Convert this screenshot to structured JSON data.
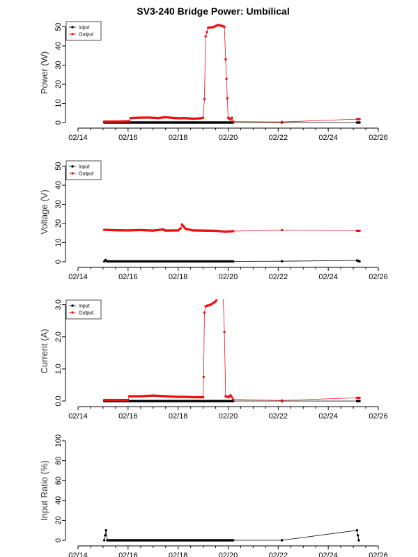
{
  "title": "SV3-240 Bridge Power: Umbilical",
  "colors": {
    "input": "#000000",
    "output": "#ee1111"
  },
  "chart_data": [
    {
      "type": "line",
      "id": "power",
      "ylabel": "Power (W)",
      "ylim": [
        0,
        52
      ],
      "yticks": [
        "0",
        "10",
        "20",
        "30",
        "40",
        "50"
      ],
      "xticks": [
        "02/14",
        "02/16",
        "02/18",
        "02/20",
        "02/22",
        "02/24",
        "02/26"
      ],
      "legend": {
        "position": "top-left",
        "entries": [
          "Input",
          "Output"
        ]
      },
      "series": [
        {
          "name": "Input",
          "color": "#000000",
          "points": [
            [
              15.05,
              0
            ],
            [
              15.5,
              0
            ],
            [
              16,
              0
            ],
            [
              17,
              0
            ],
            [
              17.8,
              0
            ],
            [
              18.2,
              0
            ],
            [
              18.7,
              0
            ],
            [
              19.5,
              0
            ],
            [
              20.2,
              0
            ],
            [
              22.15,
              0
            ],
            [
              25.15,
              0
            ],
            [
              25.25,
              0
            ]
          ]
        },
        {
          "name": "Output",
          "color": "#ee1111",
          "points": [
            [
              15.05,
              0.5
            ],
            [
              15.5,
              0.5
            ],
            [
              16.05,
              0.7
            ],
            [
              16.1,
              2.3
            ],
            [
              16.4,
              2.5
            ],
            [
              16.8,
              2.6
            ],
            [
              17.2,
              2.3
            ],
            [
              17.5,
              2.8
            ],
            [
              17.7,
              2.5
            ],
            [
              18.0,
              2.2
            ],
            [
              18.3,
              2.3
            ],
            [
              18.6,
              2.0
            ],
            [
              18.9,
              2.2
            ],
            [
              19.0,
              2.5
            ],
            [
              19.05,
              12.2
            ],
            [
              19.1,
              45
            ],
            [
              19.2,
              49.5
            ],
            [
              19.4,
              49.8
            ],
            [
              19.6,
              51
            ],
            [
              19.75,
              50.5
            ],
            [
              19.85,
              50
            ],
            [
              19.9,
              33
            ],
            [
              20.0,
              2.5
            ],
            [
              20.1,
              1.5
            ],
            [
              20.15,
              2.5
            ],
            [
              20.2,
              0.5
            ],
            [
              22.15,
              0.3
            ],
            [
              25.15,
              1.8
            ],
            [
              25.25,
              1.8
            ]
          ]
        }
      ]
    },
    {
      "type": "line",
      "id": "voltage",
      "ylabel": "Voltage (V)",
      "ylim": [
        0,
        52
      ],
      "yticks": [
        "0",
        "10",
        "20",
        "30",
        "40",
        "50"
      ],
      "xticks": [
        "02/14",
        "02/16",
        "02/18",
        "02/20",
        "02/22",
        "02/24",
        "02/26"
      ],
      "legend": {
        "position": "top-left",
        "entries": [
          "Input",
          "Output"
        ]
      },
      "series": [
        {
          "name": "Input",
          "color": "#000000",
          "points": [
            [
              15.05,
              0.2
            ],
            [
              15.1,
              1.0
            ],
            [
              15.15,
              0.2
            ],
            [
              16,
              0.2
            ],
            [
              17,
              0.2
            ],
            [
              18,
              0.2
            ],
            [
              18.7,
              0.2
            ],
            [
              19.5,
              0.2
            ],
            [
              20.2,
              0.2
            ],
            [
              22.15,
              0.3
            ],
            [
              25.15,
              0.7
            ],
            [
              25.25,
              0.2
            ]
          ]
        },
        {
          "name": "Output",
          "color": "#ee1111",
          "points": [
            [
              15.05,
              16.7
            ],
            [
              15.5,
              16.5
            ],
            [
              16,
              16.4
            ],
            [
              16.5,
              16.6
            ],
            [
              17,
              16.3
            ],
            [
              17.4,
              16.9
            ],
            [
              17.5,
              16.3
            ],
            [
              18.0,
              16.4
            ],
            [
              18.1,
              17.5
            ],
            [
              18.15,
              19.5
            ],
            [
              18.3,
              17.2
            ],
            [
              18.6,
              16.4
            ],
            [
              19.0,
              16.3
            ],
            [
              19.5,
              16.2
            ],
            [
              19.9,
              15.7
            ],
            [
              20.2,
              16.0
            ],
            [
              22.15,
              16.6
            ],
            [
              25.15,
              16.2
            ],
            [
              25.25,
              16.2
            ]
          ]
        }
      ]
    },
    {
      "type": "line",
      "id": "current",
      "ylabel": "Current (A)",
      "ylim": [
        0,
        3.1
      ],
      "yticks": [
        "0.0",
        "1.0",
        "2.0",
        "3.0"
      ],
      "xticks": [
        "02/14",
        "02/16",
        "02/18",
        "02/20",
        "02/22",
        "02/24",
        "02/26"
      ],
      "legend": {
        "position": "top-left",
        "entries": [
          "Input",
          "Output"
        ]
      },
      "series": [
        {
          "name": "Input",
          "color": "#000000",
          "points": [
            [
              15.05,
              0
            ],
            [
              16,
              0
            ],
            [
              17,
              0
            ],
            [
              18,
              0
            ],
            [
              18.7,
              0
            ],
            [
              19.5,
              0
            ],
            [
              20.2,
              0
            ],
            [
              22.15,
              0
            ],
            [
              25.15,
              0
            ],
            [
              25.25,
              0
            ]
          ]
        },
        {
          "name": "Output",
          "color": "#ee1111",
          "points": [
            [
              15.05,
              0.03
            ],
            [
              16.0,
              0.03
            ],
            [
              16.05,
              0.15
            ],
            [
              16.5,
              0.15
            ],
            [
              17.0,
              0.17
            ],
            [
              17.5,
              0.15
            ],
            [
              18.0,
              0.13
            ],
            [
              18.3,
              0.13
            ],
            [
              18.6,
              0.12
            ],
            [
              19.0,
              0.12
            ],
            [
              19.02,
              0.75
            ],
            [
              19.05,
              2.75
            ],
            [
              19.1,
              2.95
            ],
            [
              19.3,
              3.0
            ],
            [
              19.5,
              3.1
            ],
            [
              19.6,
              3.25
            ],
            [
              19.8,
              3.25
            ],
            [
              19.85,
              2.15
            ],
            [
              19.9,
              0.15
            ],
            [
              20.0,
              0.12
            ],
            [
              20.1,
              0.18
            ],
            [
              20.2,
              0.05
            ],
            [
              22.15,
              0.02
            ],
            [
              25.15,
              0.1
            ],
            [
              25.25,
              0.1
            ]
          ]
        }
      ]
    },
    {
      "type": "line",
      "id": "ratio",
      "ylabel": "Input Ratio (%)",
      "ylim": [
        0,
        100
      ],
      "yticks": [
        "0",
        "20",
        "40",
        "60",
        "80",
        "100"
      ],
      "xticks": [
        "02/14",
        "02/16",
        "02/18",
        "02/20",
        "02/22",
        "02/24",
        "02/26"
      ],
      "series": [
        {
          "name": "",
          "color": "#000000",
          "points": [
            [
              15.05,
              0
            ],
            [
              15.12,
              10
            ],
            [
              15.17,
              0
            ],
            [
              16,
              0
            ],
            [
              17,
              0
            ],
            [
              18,
              0
            ],
            [
              18.7,
              0
            ],
            [
              19.5,
              0
            ],
            [
              20.2,
              0
            ],
            [
              22.15,
              0
            ],
            [
              25.15,
              10
            ],
            [
              25.22,
              0
            ]
          ]
        }
      ]
    }
  ]
}
